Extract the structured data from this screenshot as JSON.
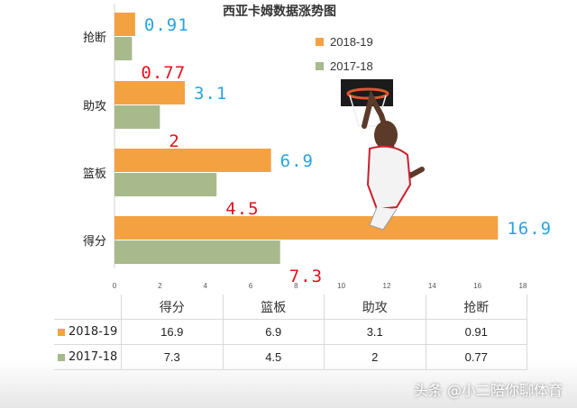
{
  "chart_data": {
    "type": "bar",
    "title": "西亚卡姆数据涨势图",
    "categories": [
      "抢断",
      "助攻",
      "篮板",
      "得分"
    ],
    "series": [
      {
        "name": "2018-19",
        "values": [
          0.91,
          3.1,
          6.9,
          16.9
        ],
        "labels": [
          "0.91",
          "3.1",
          "6.9",
          "16.9"
        ],
        "color": "#f4a142",
        "label_color": "#29a3e0"
      },
      {
        "name": "2017-18",
        "values": [
          0.77,
          2,
          4.5,
          7.3
        ],
        "labels": [
          "0.77",
          "2",
          "4.5",
          "7.3"
        ],
        "color": "#a8b98c",
        "label_color": "#e0121c"
      }
    ],
    "xlim": [
      0,
      18
    ],
    "xticks": [
      0,
      2,
      4,
      6,
      8,
      10,
      12,
      14,
      16,
      18
    ],
    "legend_position": "top-right",
    "orientation": "horizontal"
  },
  "table": {
    "headers": [
      "得分",
      "篮板",
      "助攻",
      "抢断"
    ],
    "rows": [
      {
        "label": "2018-19",
        "values": [
          "16.9",
          "6.9",
          "3.1",
          "0.91"
        ]
      },
      {
        "label": "2017-18",
        "values": [
          "7.3",
          "4.5",
          "2",
          "0.77"
        ]
      }
    ]
  },
  "watermark": "头条 @小二陪你聊体育",
  "image_description_icon": "basketball-player-dunk"
}
